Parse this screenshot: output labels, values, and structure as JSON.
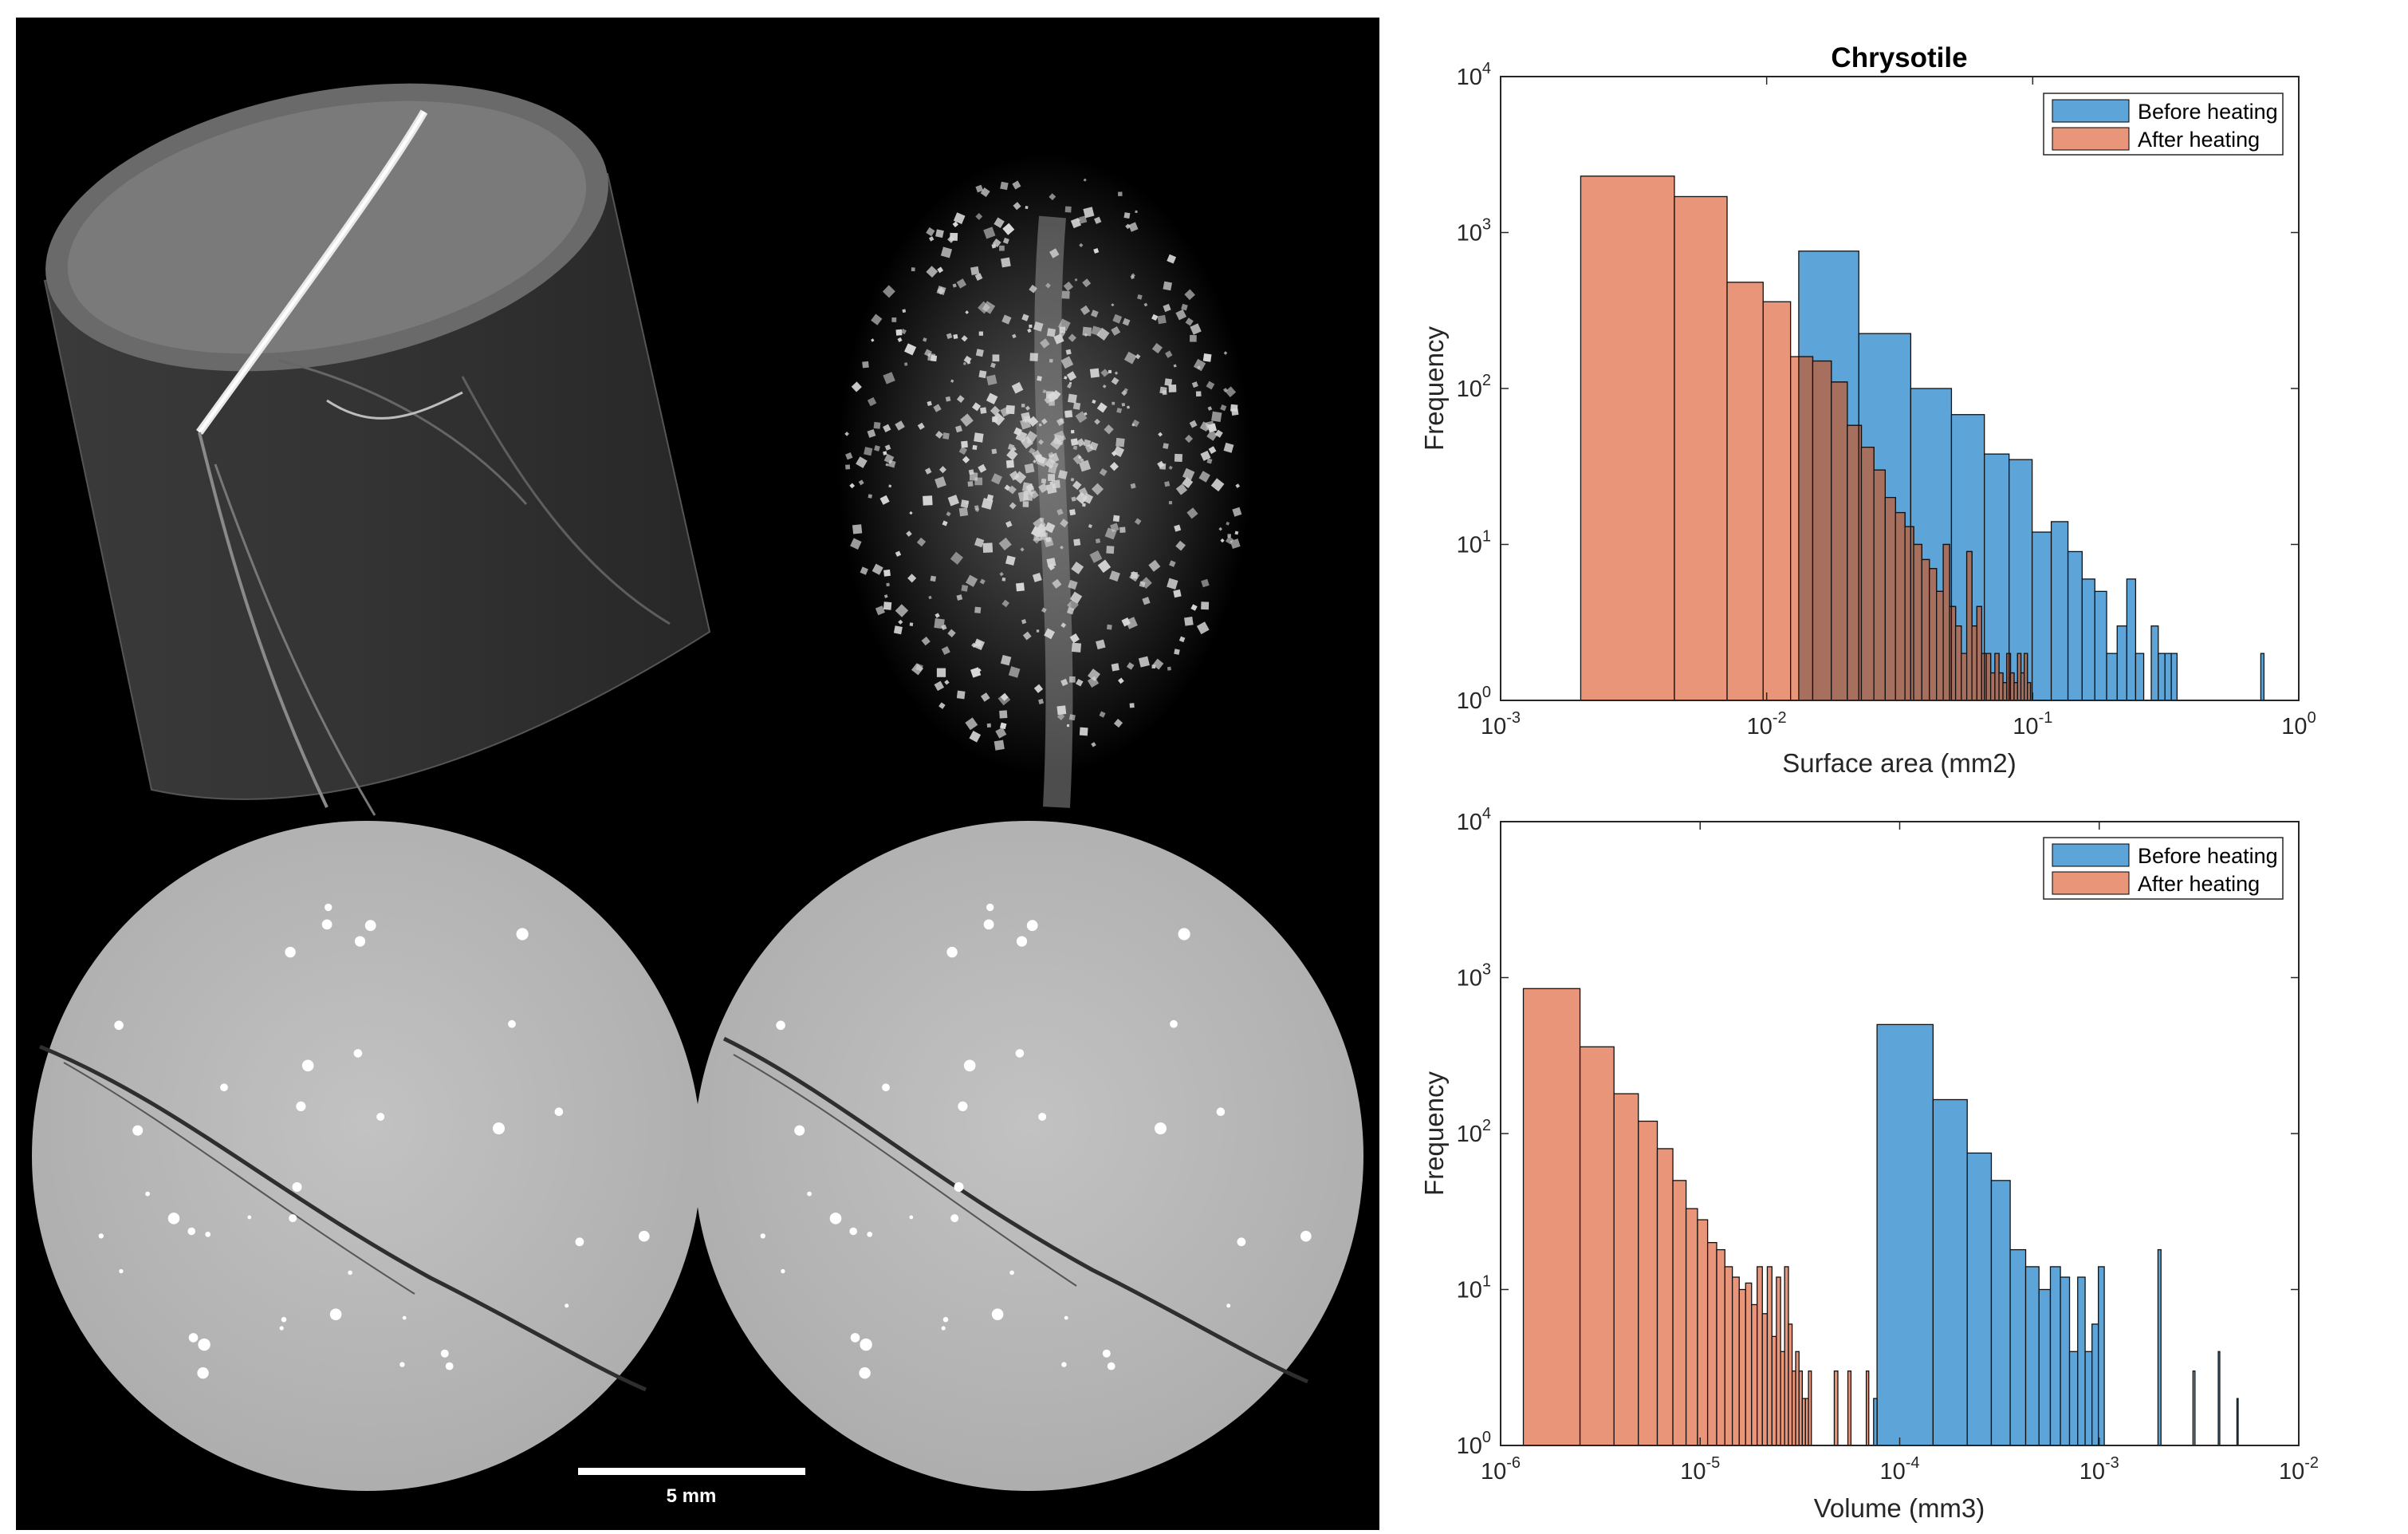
{
  "figure": {
    "scale_bar_label": "5 mm",
    "panels": [
      "3D rendering of cylindrical sample core",
      "3D rendering of isolated grains",
      "CT slice before heating",
      "CT slice after heating"
    ]
  },
  "colors": {
    "before": "#5DA5D8",
    "after": "#E8957A",
    "overlap": "#A7705E"
  },
  "chart_data": [
    {
      "type": "histogram",
      "title": "Chrysotile",
      "xlabel": "Surface area (mm2)",
      "ylabel": "Frequency",
      "xscale": "log",
      "yscale": "log",
      "xlim": [
        0.001,
        1
      ],
      "ylim": [
        1,
        10000
      ],
      "xticks": [
        {
          "value": 0.001,
          "base": "10",
          "exp": "-3"
        },
        {
          "value": 0.01,
          "base": "10",
          "exp": "-2"
        },
        {
          "value": 0.1,
          "base": "10",
          "exp": "-1"
        },
        {
          "value": 1,
          "base": "10",
          "exp": "0"
        }
      ],
      "yticks": [
        {
          "value": 1,
          "base": "10",
          "exp": "0"
        },
        {
          "value": 10,
          "base": "10",
          "exp": "1"
        },
        {
          "value": 100,
          "base": "10",
          "exp": "2"
        },
        {
          "value": 1000,
          "base": "10",
          "exp": "3"
        },
        {
          "value": 10000,
          "base": "10",
          "exp": "4"
        }
      ],
      "legend": {
        "position": "top-right",
        "entries": [
          "Before heating",
          "After heating"
        ]
      },
      "series": [
        {
          "name": "Before heating",
          "bins": [
            {
              "x0": 0.0132,
              "x1": 0.0222,
              "count": 760
            },
            {
              "x0": 0.0222,
              "x1": 0.0348,
              "count": 225
            },
            {
              "x0": 0.0348,
              "x1": 0.0495,
              "count": 100
            },
            {
              "x0": 0.0495,
              "x1": 0.0658,
              "count": 68
            },
            {
              "x0": 0.0658,
              "x1": 0.0815,
              "count": 38
            },
            {
              "x0": 0.0815,
              "x1": 0.0995,
              "count": 35
            },
            {
              "x0": 0.0995,
              "x1": 0.1174,
              "count": 12
            },
            {
              "x0": 0.1174,
              "x1": 0.1357,
              "count": 14
            },
            {
              "x0": 0.1357,
              "x1": 0.1534,
              "count": 9
            },
            {
              "x0": 0.1534,
              "x1": 0.1712,
              "count": 6
            },
            {
              "x0": 0.1712,
              "x1": 0.1896,
              "count": 5
            },
            {
              "x0": 0.1896,
              "x1": 0.2077,
              "count": 2
            },
            {
              "x0": 0.2077,
              "x1": 0.2258,
              "count": 3
            },
            {
              "x0": 0.2258,
              "x1": 0.2437,
              "count": 6
            },
            {
              "x0": 0.2437,
              "x1": 0.2614,
              "count": 2
            },
            {
              "x0": 0.2614,
              "x1": 0.279,
              "count": 1
            },
            {
              "x0": 0.279,
              "x1": 0.2964,
              "count": 3
            },
            {
              "x0": 0.2964,
              "x1": 0.3141,
              "count": 2
            },
            {
              "x0": 0.3141,
              "x1": 0.3318,
              "count": 2
            },
            {
              "x0": 0.3318,
              "x1": 0.3488,
              "count": 2
            },
            {
              "x0": 0.72,
              "x1": 0.74,
              "count": 2
            }
          ]
        },
        {
          "name": "After heating",
          "bins": [
            {
              "x0": 0.002,
              "x1": 0.0045,
              "count": 2300
            },
            {
              "x0": 0.0045,
              "x1": 0.0071,
              "count": 1700
            },
            {
              "x0": 0.0071,
              "x1": 0.0097,
              "count": 480
            },
            {
              "x0": 0.0097,
              "x1": 0.0123,
              "count": 360
            },
            {
              "x0": 0.0123,
              "x1": 0.0149,
              "count": 160
            },
            {
              "x0": 0.0149,
              "x1": 0.0175,
              "count": 150
            },
            {
              "x0": 0.0175,
              "x1": 0.0201,
              "count": 110
            },
            {
              "x0": 0.0201,
              "x1": 0.0227,
              "count": 58
            },
            {
              "x0": 0.0227,
              "x1": 0.0253,
              "count": 42
            },
            {
              "x0": 0.0253,
              "x1": 0.0279,
              "count": 30
            },
            {
              "x0": 0.0279,
              "x1": 0.0305,
              "count": 20
            },
            {
              "x0": 0.0305,
              "x1": 0.0331,
              "count": 16
            },
            {
              "x0": 0.0331,
              "x1": 0.0357,
              "count": 13
            },
            {
              "x0": 0.0357,
              "x1": 0.0383,
              "count": 10
            },
            {
              "x0": 0.0383,
              "x1": 0.0409,
              "count": 8
            },
            {
              "x0": 0.0409,
              "x1": 0.0435,
              "count": 7
            },
            {
              "x0": 0.0435,
              "x1": 0.0461,
              "count": 5
            },
            {
              "x0": 0.0461,
              "x1": 0.0487,
              "count": 10
            },
            {
              "x0": 0.0487,
              "x1": 0.0513,
              "count": 4
            },
            {
              "x0": 0.0513,
              "x1": 0.0539,
              "count": 3
            },
            {
              "x0": 0.0539,
              "x1": 0.0565,
              "count": 2
            },
            {
              "x0": 0.0565,
              "x1": 0.0591,
              "count": 9
            },
            {
              "x0": 0.0591,
              "x1": 0.0617,
              "count": 3
            },
            {
              "x0": 0.0617,
              "x1": 0.0643,
              "count": 4
            },
            {
              "x0": 0.0643,
              "x1": 0.0669,
              "count": 2
            },
            {
              "x0": 0.0669,
              "x1": 0.0695,
              "count": 2
            },
            {
              "x0": 0.0695,
              "x1": 0.0721,
              "count": 1.5
            },
            {
              "x0": 0.0721,
              "x1": 0.0747,
              "count": 2
            },
            {
              "x0": 0.0747,
              "x1": 0.0773,
              "count": 1.5
            },
            {
              "x0": 0.0773,
              "x1": 0.0799,
              "count": 1.3
            },
            {
              "x0": 0.0799,
              "x1": 0.0825,
              "count": 2
            },
            {
              "x0": 0.0825,
              "x1": 0.0851,
              "count": 1.5
            },
            {
              "x0": 0.0851,
              "x1": 0.0877,
              "count": 1.3
            },
            {
              "x0": 0.0877,
              "x1": 0.0903,
              "count": 2
            },
            {
              "x0": 0.0903,
              "x1": 0.0929,
              "count": 1.5
            },
            {
              "x0": 0.0929,
              "x1": 0.0955,
              "count": 2
            },
            {
              "x0": 0.0955,
              "x1": 0.0981,
              "count": 1.3
            }
          ]
        }
      ]
    },
    {
      "type": "histogram",
      "title": "",
      "xlabel": "Volume (mm3)",
      "ylabel": "Frequency",
      "xscale": "log",
      "yscale": "log",
      "xlim": [
        1e-06,
        0.01
      ],
      "ylim": [
        1,
        10000
      ],
      "xticks": [
        {
          "value": 1e-06,
          "base": "10",
          "exp": "-6"
        },
        {
          "value": 1e-05,
          "base": "10",
          "exp": "-5"
        },
        {
          "value": 0.0001,
          "base": "10",
          "exp": "-4"
        },
        {
          "value": 0.001,
          "base": "10",
          "exp": "-3"
        },
        {
          "value": 0.01,
          "base": "10",
          "exp": "-2"
        }
      ],
      "yticks": [
        {
          "value": 1,
          "base": "10",
          "exp": "0"
        },
        {
          "value": 10,
          "base": "10",
          "exp": "1"
        },
        {
          "value": 100,
          "base": "10",
          "exp": "2"
        },
        {
          "value": 1000,
          "base": "10",
          "exp": "3"
        },
        {
          "value": 10000,
          "base": "10",
          "exp": "4"
        }
      ],
      "legend": {
        "position": "top-right",
        "entries": [
          "Before heating",
          "After heating"
        ]
      },
      "series": [
        {
          "name": "Before heating",
          "bins": [
            {
              "x0": 7.7e-05,
              "x1": 0.000147,
              "count": 500
            },
            {
              "x0": 0.000147,
              "x1": 0.000218,
              "count": 165
            },
            {
              "x0": 0.000218,
              "x1": 0.000288,
              "count": 75
            },
            {
              "x0": 0.000288,
              "x1": 0.000358,
              "count": 50
            },
            {
              "x0": 0.000358,
              "x1": 0.000428,
              "count": 18
            },
            {
              "x0": 0.000428,
              "x1": 0.000499,
              "count": 14
            },
            {
              "x0": 0.000499,
              "x1": 0.000569,
              "count": 10
            },
            {
              "x0": 0.000569,
              "x1": 0.000639,
              "count": 14
            },
            {
              "x0": 0.000639,
              "x1": 0.00071,
              "count": 12
            },
            {
              "x0": 0.00071,
              "x1": 0.00078,
              "count": 4
            },
            {
              "x0": 0.00078,
              "x1": 0.00085,
              "count": 12
            },
            {
              "x0": 0.00085,
              "x1": 0.00092,
              "count": 4
            },
            {
              "x0": 0.00092,
              "x1": 0.00099,
              "count": 6
            },
            {
              "x0": 0.00099,
              "x1": 0.00106,
              "count": 14
            },
            {
              "x0": 0.00197,
              "x1": 0.00204,
              "count": 18
            },
            {
              "x0": 0.00295,
              "x1": 0.00302,
              "count": 3
            },
            {
              "x0": 0.00395,
              "x1": 0.00402,
              "count": 4
            },
            {
              "x0": 0.0049,
              "x1": 0.00497,
              "count": 2
            },
            {
              "x0": 7.4e-05,
              "x1": 7.7e-05,
              "count": 2
            }
          ]
        },
        {
          "name": "After heating",
          "bins": [
            {
              "x0": 1.3e-06,
              "x1": 2.5e-06,
              "count": 850
            },
            {
              "x0": 2.5e-06,
              "x1": 3.7e-06,
              "count": 360
            },
            {
              "x0": 3.7e-06,
              "x1": 4.9e-06,
              "count": 180
            },
            {
              "x0": 4.9e-06,
              "x1": 6.1e-06,
              "count": 120
            },
            {
              "x0": 6.1e-06,
              "x1": 7.3e-06,
              "count": 80
            },
            {
              "x0": 7.3e-06,
              "x1": 8.5e-06,
              "count": 50
            },
            {
              "x0": 8.5e-06,
              "x1": 9.7e-06,
              "count": 33
            },
            {
              "x0": 9.7e-06,
              "x1": 1.09e-05,
              "count": 28
            },
            {
              "x0": 1.09e-05,
              "x1": 1.21e-05,
              "count": 20
            },
            {
              "x0": 1.21e-05,
              "x1": 1.33e-05,
              "count": 18
            },
            {
              "x0": 1.33e-05,
              "x1": 1.45e-05,
              "count": 14
            },
            {
              "x0": 1.45e-05,
              "x1": 1.57e-05,
              "count": 12
            },
            {
              "x0": 1.57e-05,
              "x1": 1.69e-05,
              "count": 10
            },
            {
              "x0": 1.69e-05,
              "x1": 1.81e-05,
              "count": 11
            },
            {
              "x0": 1.81e-05,
              "x1": 1.93e-05,
              "count": 8
            },
            {
              "x0": 1.93e-05,
              "x1": 2.05e-05,
              "count": 14
            },
            {
              "x0": 2.05e-05,
              "x1": 2.17e-05,
              "count": 7
            },
            {
              "x0": 2.17e-05,
              "x1": 2.29e-05,
              "count": 14
            },
            {
              "x0": 2.29e-05,
              "x1": 2.41e-05,
              "count": 5
            },
            {
              "x0": 2.41e-05,
              "x1": 2.53e-05,
              "count": 12
            },
            {
              "x0": 2.53e-05,
              "x1": 2.65e-05,
              "count": 4
            },
            {
              "x0": 2.65e-05,
              "x1": 2.77e-05,
              "count": 14
            },
            {
              "x0": 2.77e-05,
              "x1": 2.89e-05,
              "count": 6
            },
            {
              "x0": 2.89e-05,
              "x1": 3.01e-05,
              "count": 3
            },
            {
              "x0": 3.01e-05,
              "x1": 3.13e-05,
              "count": 4
            },
            {
              "x0": 3.13e-05,
              "x1": 3.25e-05,
              "count": 3
            },
            {
              "x0": 3.25e-05,
              "x1": 3.37e-05,
              "count": 2
            },
            {
              "x0": 3.37e-05,
              "x1": 3.49e-05,
              "count": 2
            },
            {
              "x0": 3.49e-05,
              "x1": 3.61e-05,
              "count": 3
            },
            {
              "x0": 4.7e-05,
              "x1": 4.9e-05,
              "count": 3
            },
            {
              "x0": 5.5e-05,
              "x1": 5.7e-05,
              "count": 3
            },
            {
              "x0": 6.8e-05,
              "x1": 7e-05,
              "count": 3
            }
          ]
        }
      ]
    }
  ]
}
